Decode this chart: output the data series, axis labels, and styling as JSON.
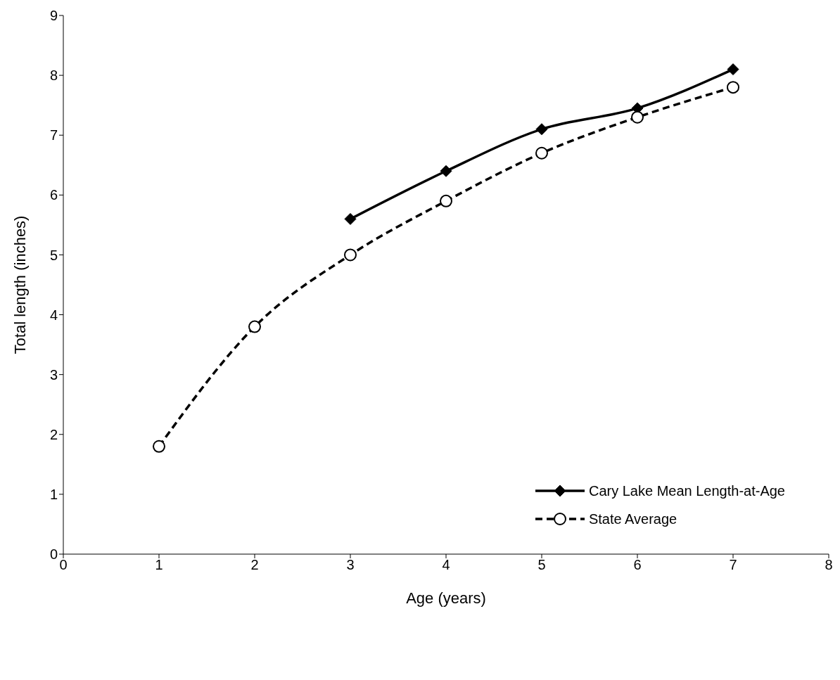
{
  "chart_data": {
    "type": "line",
    "xlabel": "Age (years)",
    "ylabel": "Total length (inches)",
    "x": [
      1,
      2,
      3,
      4,
      5,
      6,
      7
    ],
    "series": [
      {
        "name": "Cary Lake Mean Length-at-Age",
        "color": "#000000",
        "marker": "diamond",
        "line_style": "solid",
        "values": [
          null,
          null,
          5.6,
          6.4,
          7.1,
          7.45,
          8.1
        ]
      },
      {
        "name": "State Average",
        "color": "#000000",
        "marker": "circle",
        "line_style": "dashed",
        "values": [
          1.8,
          3.8,
          5.0,
          5.9,
          6.7,
          7.3,
          7.8
        ]
      }
    ],
    "xlim": [
      0,
      8
    ],
    "xticks": [
      0,
      1,
      2,
      3,
      4,
      5,
      6,
      7,
      8
    ],
    "ylim": [
      0,
      9
    ],
    "yticks": [
      0,
      1,
      2,
      3,
      4,
      5,
      6,
      7,
      8,
      9
    ],
    "grid": false,
    "legend": "bottom right"
  }
}
